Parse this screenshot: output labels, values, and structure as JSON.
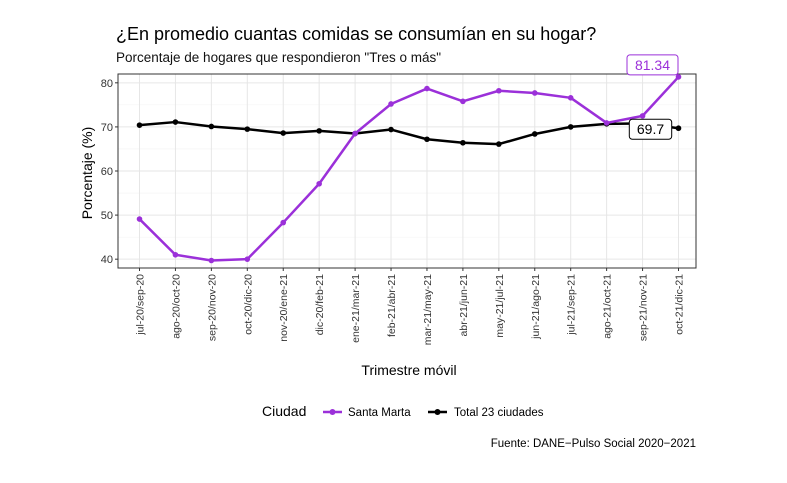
{
  "chart_data": {
    "type": "line",
    "title": "¿En promedio cuantas comidas se consumían en su hogar?",
    "subtitle": "Porcentaje de hogares que respondieron \"Tres o más\"",
    "xlabel": "Trimestre móvil",
    "ylabel": "Porcentaje (%)",
    "ylim": [
      38,
      82
    ],
    "yticks": [
      40,
      50,
      60,
      70,
      80
    ],
    "categories": [
      "jul-20/sep-20",
      "ago-20/oct-20",
      "sep-20/nov-20",
      "oct-20/dic-20",
      "nov-20/ene-21",
      "dic-20/feb-21",
      "ene-21/mar-21",
      "feb-21/abr-21",
      "mar-21/may-21",
      "abr-21/jun-21",
      "may-21/jul-21",
      "jun-21/ago-21",
      "jul-21/sep-21",
      "ago-21/oct-21",
      "sep-21/nov-21",
      "oct-21/dic-21"
    ],
    "series": [
      {
        "name": "Santa Marta",
        "color": "#9b30d9",
        "values": [
          49.1,
          41.0,
          39.7,
          40.0,
          48.3,
          57.1,
          68.5,
          75.2,
          78.7,
          75.8,
          78.2,
          77.7,
          76.6,
          70.9,
          72.5,
          81.34
        ]
      },
      {
        "name": "Total 23 ciudades",
        "color": "#000000",
        "values": [
          70.4,
          71.1,
          70.1,
          69.5,
          68.6,
          69.1,
          68.5,
          69.4,
          67.2,
          66.4,
          66.1,
          68.4,
          70.0,
          70.7,
          70.8,
          69.7
        ]
      }
    ],
    "annotations": [
      {
        "series": "Santa Marta",
        "label": "81.34"
      },
      {
        "series": "Total 23 ciudades",
        "label": "69.7"
      }
    ],
    "legend": {
      "title": "Ciudad",
      "position": "bottom"
    },
    "caption": "Fuente: DANE−Pulso Social 2020−2021"
  }
}
